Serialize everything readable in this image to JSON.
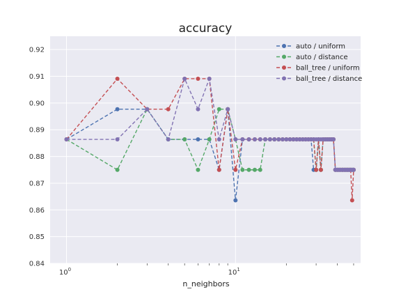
{
  "chart_data": {
    "type": "line",
    "title": "accuracy",
    "xlabel": "n_neighbors",
    "ylabel": "",
    "xscale": "log",
    "xlim": [
      0.8,
      55
    ],
    "ylim": [
      0.84,
      0.925
    ],
    "grid": true,
    "legend_position": "top-right",
    "x_tick_labels": [
      {
        "value": 1,
        "base": "10",
        "exp": "0"
      },
      {
        "value": 10,
        "base": "10",
        "exp": "1"
      }
    ],
    "y_ticks": [
      0.84,
      0.85,
      0.86,
      0.87,
      0.88,
      0.89,
      0.9,
      0.91,
      0.92
    ],
    "y_tick_labels": [
      "0.84",
      "0.85",
      "0.86",
      "0.87",
      "0.88",
      "0.89",
      "0.90",
      "0.91",
      "0.92"
    ],
    "x": [
      1,
      2,
      3,
      4,
      5,
      6,
      7,
      8,
      9,
      10,
      11,
      12,
      13,
      14,
      15,
      16,
      17,
      18,
      19,
      20,
      21,
      22,
      23,
      24,
      25,
      26,
      27,
      28,
      29,
      30,
      31,
      32,
      33,
      34,
      35,
      36,
      37,
      38,
      39,
      40,
      41,
      42,
      43,
      44,
      45,
      46,
      47,
      48,
      49,
      50
    ],
    "series": [
      {
        "name": "auto / uniform",
        "color": "#4c72b0",
        "values": [
          0.8864,
          0.8977,
          0.8977,
          0.8864,
          0.8864,
          0.8864,
          0.8864,
          0.875,
          0.8977,
          0.8636,
          0.8864,
          0.8864,
          0.8864,
          0.8864,
          0.8864,
          0.8864,
          0.8864,
          0.8864,
          0.8864,
          0.8864,
          0.8864,
          0.8864,
          0.8864,
          0.8864,
          0.8864,
          0.8864,
          0.8864,
          0.8864,
          0.875,
          0.875,
          0.8864,
          0.875,
          0.8864,
          0.8864,
          0.8864,
          0.8864,
          0.8864,
          0.8864,
          0.875,
          0.875,
          0.875,
          0.875,
          0.875,
          0.875,
          0.875,
          0.875,
          0.875,
          0.875,
          0.875,
          0.875
        ]
      },
      {
        "name": "auto / distance",
        "color": "#55a868",
        "values": [
          0.8864,
          0.875,
          0.8977,
          0.8864,
          0.8864,
          0.875,
          0.8864,
          0.8977,
          0.8977,
          0.8864,
          0.875,
          0.875,
          0.875,
          0.875,
          0.8864,
          0.8864,
          0.8864,
          0.8864,
          0.8864,
          0.8864,
          0.8864,
          0.8864,
          0.8864,
          0.8864,
          0.8864,
          0.8864,
          0.8864,
          0.8864,
          0.8864,
          0.875,
          0.8864,
          0.875,
          0.8864,
          0.8864,
          0.8864,
          0.8864,
          0.8864,
          0.8864,
          0.875,
          0.875,
          0.875,
          0.875,
          0.875,
          0.875,
          0.875,
          0.875,
          0.875,
          0.875,
          0.875,
          0.875
        ]
      },
      {
        "name": "ball_tree / uniform",
        "color": "#c44e52",
        "values": [
          0.8864,
          0.9091,
          0.8977,
          0.8977,
          0.9091,
          0.9091,
          0.9091,
          0.875,
          0.8977,
          0.875,
          0.8864,
          0.8864,
          0.8864,
          0.8864,
          0.8864,
          0.8864,
          0.8864,
          0.8864,
          0.8864,
          0.8864,
          0.8864,
          0.8864,
          0.8864,
          0.8864,
          0.8864,
          0.8864,
          0.8864,
          0.8864,
          0.8864,
          0.875,
          0.8864,
          0.875,
          0.8864,
          0.8864,
          0.8864,
          0.8864,
          0.8864,
          0.8864,
          0.875,
          0.875,
          0.875,
          0.875,
          0.875,
          0.875,
          0.875,
          0.875,
          0.875,
          0.875,
          0.8636,
          0.875
        ]
      },
      {
        "name": "ball_tree / distance",
        "color": "#8172b2",
        "values": [
          0.8864,
          0.8864,
          0.8977,
          0.8864,
          0.9091,
          0.8977,
          0.9091,
          0.8864,
          0.8977,
          0.8864,
          0.8864,
          0.8864,
          0.8864,
          0.8864,
          0.8864,
          0.8864,
          0.8864,
          0.8864,
          0.8864,
          0.8864,
          0.8864,
          0.8864,
          0.8864,
          0.8864,
          0.8864,
          0.8864,
          0.8864,
          0.8864,
          0.8864,
          0.8864,
          0.8864,
          0.8864,
          0.8864,
          0.8864,
          0.8864,
          0.8864,
          0.8864,
          0.8864,
          0.875,
          0.875,
          0.875,
          0.875,
          0.875,
          0.875,
          0.875,
          0.875,
          0.875,
          0.875,
          0.875,
          0.875
        ]
      }
    ]
  }
}
